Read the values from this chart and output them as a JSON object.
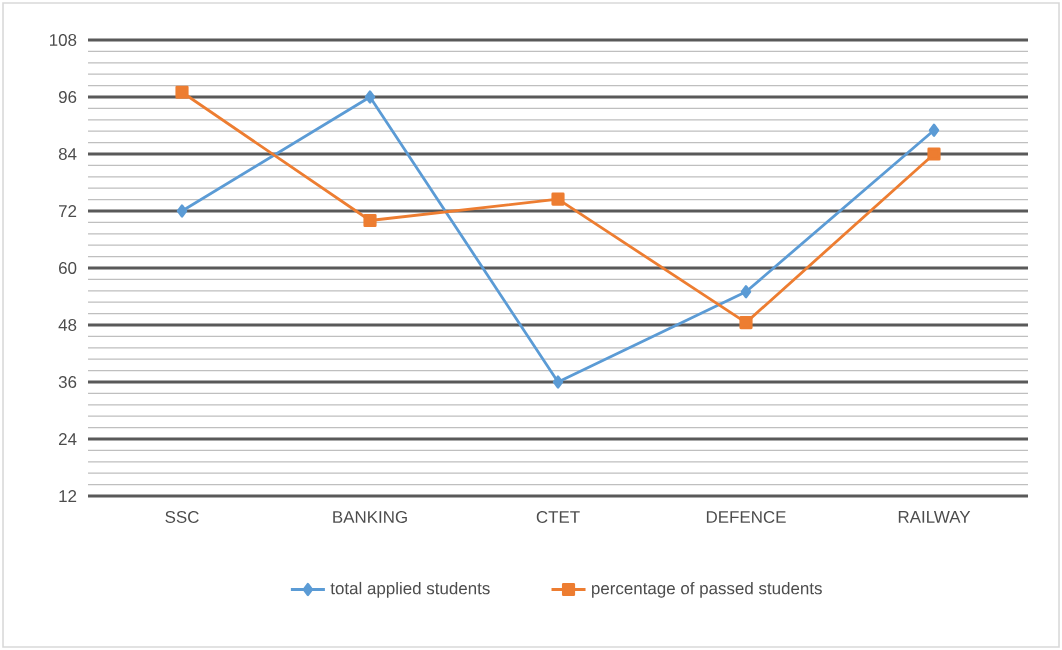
{
  "chart_data": {
    "type": "line",
    "categories": [
      "SSC",
      "BANKING",
      "CTET",
      "DEFENCE",
      "RAILWAY"
    ],
    "series": [
      {
        "name": "total applied students",
        "color": "#5b9bd5",
        "marker": "diamond",
        "values": [
          72,
          96,
          36,
          55,
          89
        ]
      },
      {
        "name": "percentage of passed students",
        "color": "#ed7d31",
        "marker": "square",
        "values": [
          97,
          70,
          74.5,
          48.5,
          84
        ]
      }
    ],
    "ylim": [
      12,
      108
    ],
    "yticks": [
      12,
      24,
      36,
      48,
      60,
      72,
      84,
      96,
      108
    ],
    "grid": true,
    "legend": "bottom",
    "line_style": "solid"
  }
}
